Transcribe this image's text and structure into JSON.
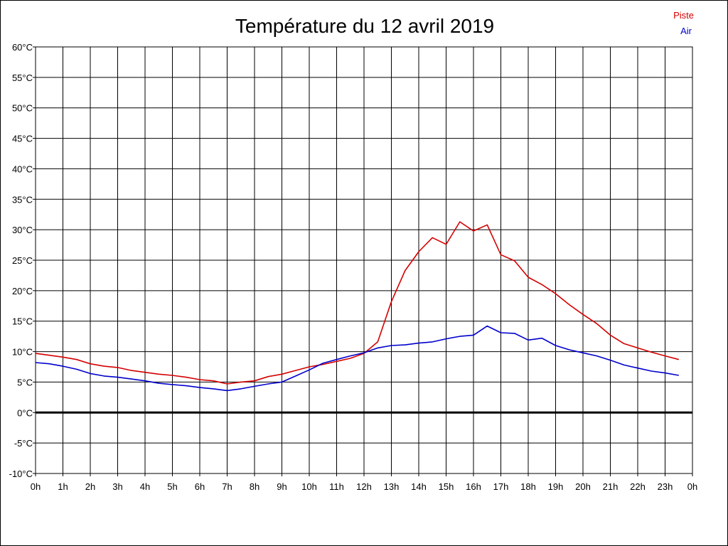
{
  "chart_data": {
    "type": "line",
    "title": "Température du 12 avril 2019",
    "xlabel": "",
    "ylabel": "",
    "ylim": [
      -10,
      60
    ],
    "xlim": [
      0,
      24
    ],
    "x_tick_labels": [
      "0h",
      "1h",
      "2h",
      "3h",
      "4h",
      "5h",
      "6h",
      "7h",
      "8h",
      "9h",
      "10h",
      "11h",
      "12h",
      "13h",
      "14h",
      "15h",
      "16h",
      "17h",
      "18h",
      "19h",
      "20h",
      "21h",
      "22h",
      "23h",
      "0h"
    ],
    "y_tick_labels": [
      "60°C",
      "55°C",
      "50°C",
      "45°C",
      "40°C",
      "35°C",
      "30°C",
      "25°C",
      "20°C",
      "15°C",
      "10°C",
      "5°C",
      "0°C",
      "-5°C",
      "-10°C"
    ],
    "y_ticks": [
      60,
      55,
      50,
      45,
      40,
      35,
      30,
      25,
      20,
      15,
      10,
      5,
      0,
      -5,
      -10
    ],
    "grid": true,
    "legend_position": "top-right",
    "x": [
      0,
      0.5,
      1,
      1.5,
      2,
      2.5,
      3,
      3.5,
      4,
      4.5,
      5,
      5.5,
      6,
      6.5,
      7,
      7.5,
      8,
      8.5,
      9,
      9.5,
      10,
      10.5,
      11,
      11.5,
      12,
      12.5,
      13,
      13.5,
      14,
      14.5,
      15,
      15.5,
      16,
      16.5,
      17,
      17.5,
      18,
      18.5,
      19,
      19.5,
      20,
      20.5,
      21,
      21.5,
      22,
      22.5,
      23,
      23.5
    ],
    "series": [
      {
        "name": "Piste",
        "color": "#d40000",
        "values": [
          9.7,
          9.4,
          9.1,
          8.7,
          8.0,
          7.6,
          7.4,
          6.9,
          6.6,
          6.3,
          6.1,
          5.8,
          5.4,
          5.2,
          4.7,
          5.0,
          5.2,
          5.9,
          6.3,
          6.9,
          7.5,
          7.9,
          8.4,
          8.9,
          9.7,
          11.6,
          18.2,
          23.3,
          26.4,
          28.7,
          27.6,
          31.3,
          29.8,
          30.8,
          25.9,
          24.9,
          22.2,
          21.0,
          19.5,
          17.7,
          16.1,
          14.6,
          12.7,
          11.3,
          10.6,
          9.9,
          9.3,
          8.7
        ]
      },
      {
        "name": "Air",
        "color": "#0000cc",
        "values": [
          8.2,
          8.0,
          7.6,
          7.1,
          6.4,
          6.0,
          5.8,
          5.5,
          5.2,
          4.8,
          4.6,
          4.4,
          4.1,
          3.9,
          3.6,
          3.9,
          4.3,
          4.7,
          5.0,
          6.0,
          7.0,
          8.1,
          8.7,
          9.3,
          9.8,
          10.6,
          11.0,
          11.1,
          11.4,
          11.6,
          12.1,
          12.5,
          12.7,
          14.2,
          13.1,
          13.0,
          11.9,
          12.2,
          11.0,
          10.3,
          9.8,
          9.3,
          8.6,
          7.8,
          7.3,
          6.8,
          6.5,
          6.1
        ]
      }
    ]
  }
}
